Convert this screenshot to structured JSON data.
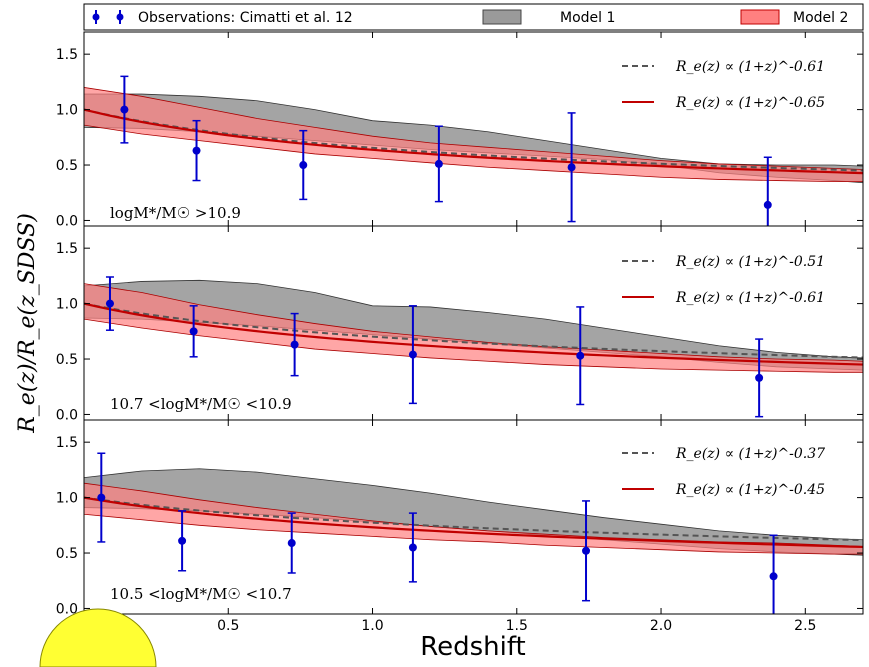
{
  "legend": {
    "observations": "Observations: Cimatti et al. 12",
    "model1": "Model 1",
    "model2": "Model 2"
  },
  "colors": {
    "observations": "#0000cc",
    "model1_fill": "#9a9a9a",
    "model2_fill": "#ff8080",
    "fit_model1": "#555555",
    "fit_model2": "#c00000"
  },
  "chart_data": {
    "type": "line",
    "xlabel": "Redshift",
    "ylabel": "R_e(z)/R_e(z_SDSS)",
    "xlim": [
      0.0,
      2.7
    ],
    "ylim": [
      -0.05,
      1.7
    ],
    "xticks": [
      "0.0",
      "0.5",
      "1.0",
      "1.5",
      "2.0",
      "2.5"
    ],
    "yticks": [
      "0.0",
      "0.5",
      "1.0",
      "1.5"
    ],
    "grid": false,
    "legend_position": "top",
    "band_x": [
      0.0,
      0.2,
      0.4,
      0.6,
      0.8,
      1.0,
      1.2,
      1.4,
      1.6,
      1.8,
      2.0,
      2.2,
      2.4,
      2.6,
      2.7
    ],
    "panels": [
      {
        "label": "logM*/M☉ >10.9",
        "fit_model1_label": "R_e(z) ∝ (1+z)^-0.61",
        "fit_model2_label": "R_e(z) ∝ (1+z)^-0.65",
        "fit_model1_exponent": -0.61,
        "fit_model2_exponent": -0.65,
        "observations": {
          "x": [
            0.14,
            0.39,
            0.76,
            1.23,
            1.69,
            2.37
          ],
          "y": [
            1.0,
            0.63,
            0.5,
            0.51,
            0.48,
            0.14
          ],
          "yerr": [
            0.3,
            0.27,
            0.31,
            0.34,
            0.49,
            0.43
          ]
        },
        "model1_band": {
          "lower": [
            0.84,
            0.83,
            0.8,
            0.76,
            0.72,
            0.68,
            0.64,
            0.61,
            0.58,
            0.55,
            0.5,
            0.43,
            0.39,
            0.36,
            0.34
          ],
          "upper": [
            1.14,
            1.14,
            1.12,
            1.08,
            1.0,
            0.9,
            0.86,
            0.8,
            0.72,
            0.64,
            0.56,
            0.51,
            0.5,
            0.5,
            0.49
          ]
        },
        "model2_band": {
          "lower": [
            0.86,
            0.78,
            0.72,
            0.66,
            0.6,
            0.56,
            0.52,
            0.48,
            0.45,
            0.42,
            0.39,
            0.37,
            0.36,
            0.35,
            0.35
          ],
          "upper": [
            1.2,
            1.12,
            1.02,
            0.92,
            0.84,
            0.76,
            0.7,
            0.66,
            0.62,
            0.58,
            0.54,
            0.51,
            0.49,
            0.47,
            0.46
          ]
        }
      },
      {
        "label": "10.7 <logM*/M☉ <10.9",
        "fit_model1_label": "R_e(z) ∝ (1+z)^-0.51",
        "fit_model2_label": "R_e(z) ∝ (1+z)^-0.61",
        "fit_model1_exponent": -0.51,
        "fit_model2_exponent": -0.61,
        "observations": {
          "x": [
            0.09,
            0.38,
            0.73,
            1.14,
            1.72,
            2.34
          ],
          "y": [
            1.0,
            0.75,
            0.63,
            0.54,
            0.53,
            0.33
          ],
          "yerr": [
            0.24,
            0.23,
            0.28,
            0.44,
            0.44,
            0.35
          ]
        },
        "model1_band": {
          "lower": [
            0.87,
            0.86,
            0.83,
            0.8,
            0.76,
            0.72,
            0.68,
            0.64,
            0.6,
            0.56,
            0.52,
            0.47,
            0.43,
            0.41,
            0.4
          ],
          "upper": [
            1.16,
            1.2,
            1.21,
            1.18,
            1.1,
            0.98,
            0.97,
            0.92,
            0.86,
            0.78,
            0.7,
            0.62,
            0.56,
            0.52,
            0.51
          ]
        },
        "model2_band": {
          "lower": [
            0.86,
            0.78,
            0.71,
            0.65,
            0.59,
            0.55,
            0.51,
            0.48,
            0.45,
            0.43,
            0.41,
            0.4,
            0.39,
            0.38,
            0.38
          ],
          "upper": [
            1.18,
            1.1,
            0.99,
            0.9,
            0.82,
            0.75,
            0.7,
            0.65,
            0.61,
            0.58,
            0.55,
            0.52,
            0.5,
            0.49,
            0.48
          ]
        }
      },
      {
        "label": "10.5 <logM*/M☉ <10.7",
        "fit_model1_label": "R_e(z) ∝ (1+z)^-0.37",
        "fit_model2_label": "R_e(z) ∝ (1+z)^-0.45",
        "fit_model1_exponent": -0.37,
        "fit_model2_exponent": -0.45,
        "observations": {
          "x": [
            0.06,
            0.34,
            0.72,
            1.14,
            1.74,
            2.39
          ],
          "y": [
            1.0,
            0.61,
            0.59,
            0.55,
            0.52,
            0.29
          ],
          "yerr": [
            0.4,
            0.27,
            0.27,
            0.31,
            0.45,
            0.37
          ]
        },
        "model1_band": {
          "lower": [
            0.91,
            0.9,
            0.88,
            0.85,
            0.82,
            0.78,
            0.74,
            0.7,
            0.66,
            0.62,
            0.58,
            0.54,
            0.51,
            0.49,
            0.48
          ],
          "upper": [
            1.18,
            1.24,
            1.26,
            1.23,
            1.17,
            1.11,
            1.04,
            0.96,
            0.89,
            0.82,
            0.76,
            0.7,
            0.66,
            0.63,
            0.62
          ]
        },
        "model2_band": {
          "lower": [
            0.85,
            0.8,
            0.75,
            0.71,
            0.68,
            0.65,
            0.62,
            0.6,
            0.57,
            0.55,
            0.53,
            0.51,
            0.5,
            0.49,
            0.49
          ],
          "upper": [
            1.13,
            1.06,
            0.98,
            0.91,
            0.85,
            0.79,
            0.74,
            0.7,
            0.67,
            0.64,
            0.62,
            0.6,
            0.59,
            0.57,
            0.56
          ]
        }
      }
    ]
  }
}
